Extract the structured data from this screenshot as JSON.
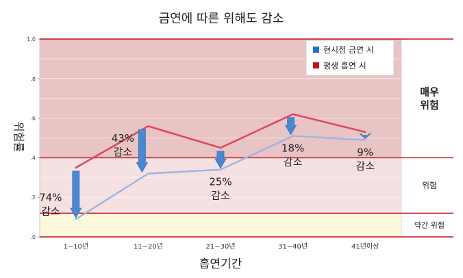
{
  "chart_data": {
    "type": "line",
    "title": "금연에 따른 위해도 감소",
    "xlabel": "흡연기간",
    "ylabel": "위험률",
    "categories": [
      "1~10년",
      "11~20년",
      "21~30년",
      "31~40년",
      "41년이상"
    ],
    "ylim": [
      0,
      1.0
    ],
    "yticks": [
      {
        "value": 0.0,
        "label": ".0"
      },
      {
        "value": 0.2,
        "label": ".2"
      },
      {
        "value": 0.4,
        "label": ".4"
      },
      {
        "value": 0.6,
        "label": ".6"
      },
      {
        "value": 0.8,
        "label": ".8"
      },
      {
        "value": 1.0,
        "label": "1.0"
      }
    ],
    "series": [
      {
        "name": "현시점 금연 시",
        "color": "#9db4e0",
        "values": [
          0.09,
          0.32,
          0.34,
          0.51,
          0.49
        ]
      },
      {
        "name": "평생 흡연 시",
        "color": "#dc4a5e",
        "values": [
          0.35,
          0.56,
          0.45,
          0.62,
          0.53
        ]
      }
    ],
    "reductions": [
      {
        "pct": "74%",
        "word": "감소"
      },
      {
        "pct": "43%",
        "word": "감소"
      },
      {
        "pct": "25%",
        "word": "감소"
      },
      {
        "pct": "18%",
        "word": "감소"
      },
      {
        "pct": "9%",
        "word": "감소"
      }
    ],
    "risk_zones": [
      {
        "label_lines": [
          "매우",
          "위험"
        ],
        "from": 0.4,
        "to": 1.0,
        "color": "#e8c4c4"
      },
      {
        "label_lines": [
          "위험"
        ],
        "from": 0.12,
        "to": 0.4,
        "color": "#f5e1e1"
      },
      {
        "label_lines": [
          "약간 위험"
        ],
        "from": 0.0,
        "to": 0.12,
        "color": "#fdf8d9"
      }
    ],
    "legend": {
      "position": "top-right",
      "colors": [
        "#1a74c9",
        "#c0101d"
      ]
    },
    "arrow_color": "#4a88d2",
    "grid": true
  }
}
